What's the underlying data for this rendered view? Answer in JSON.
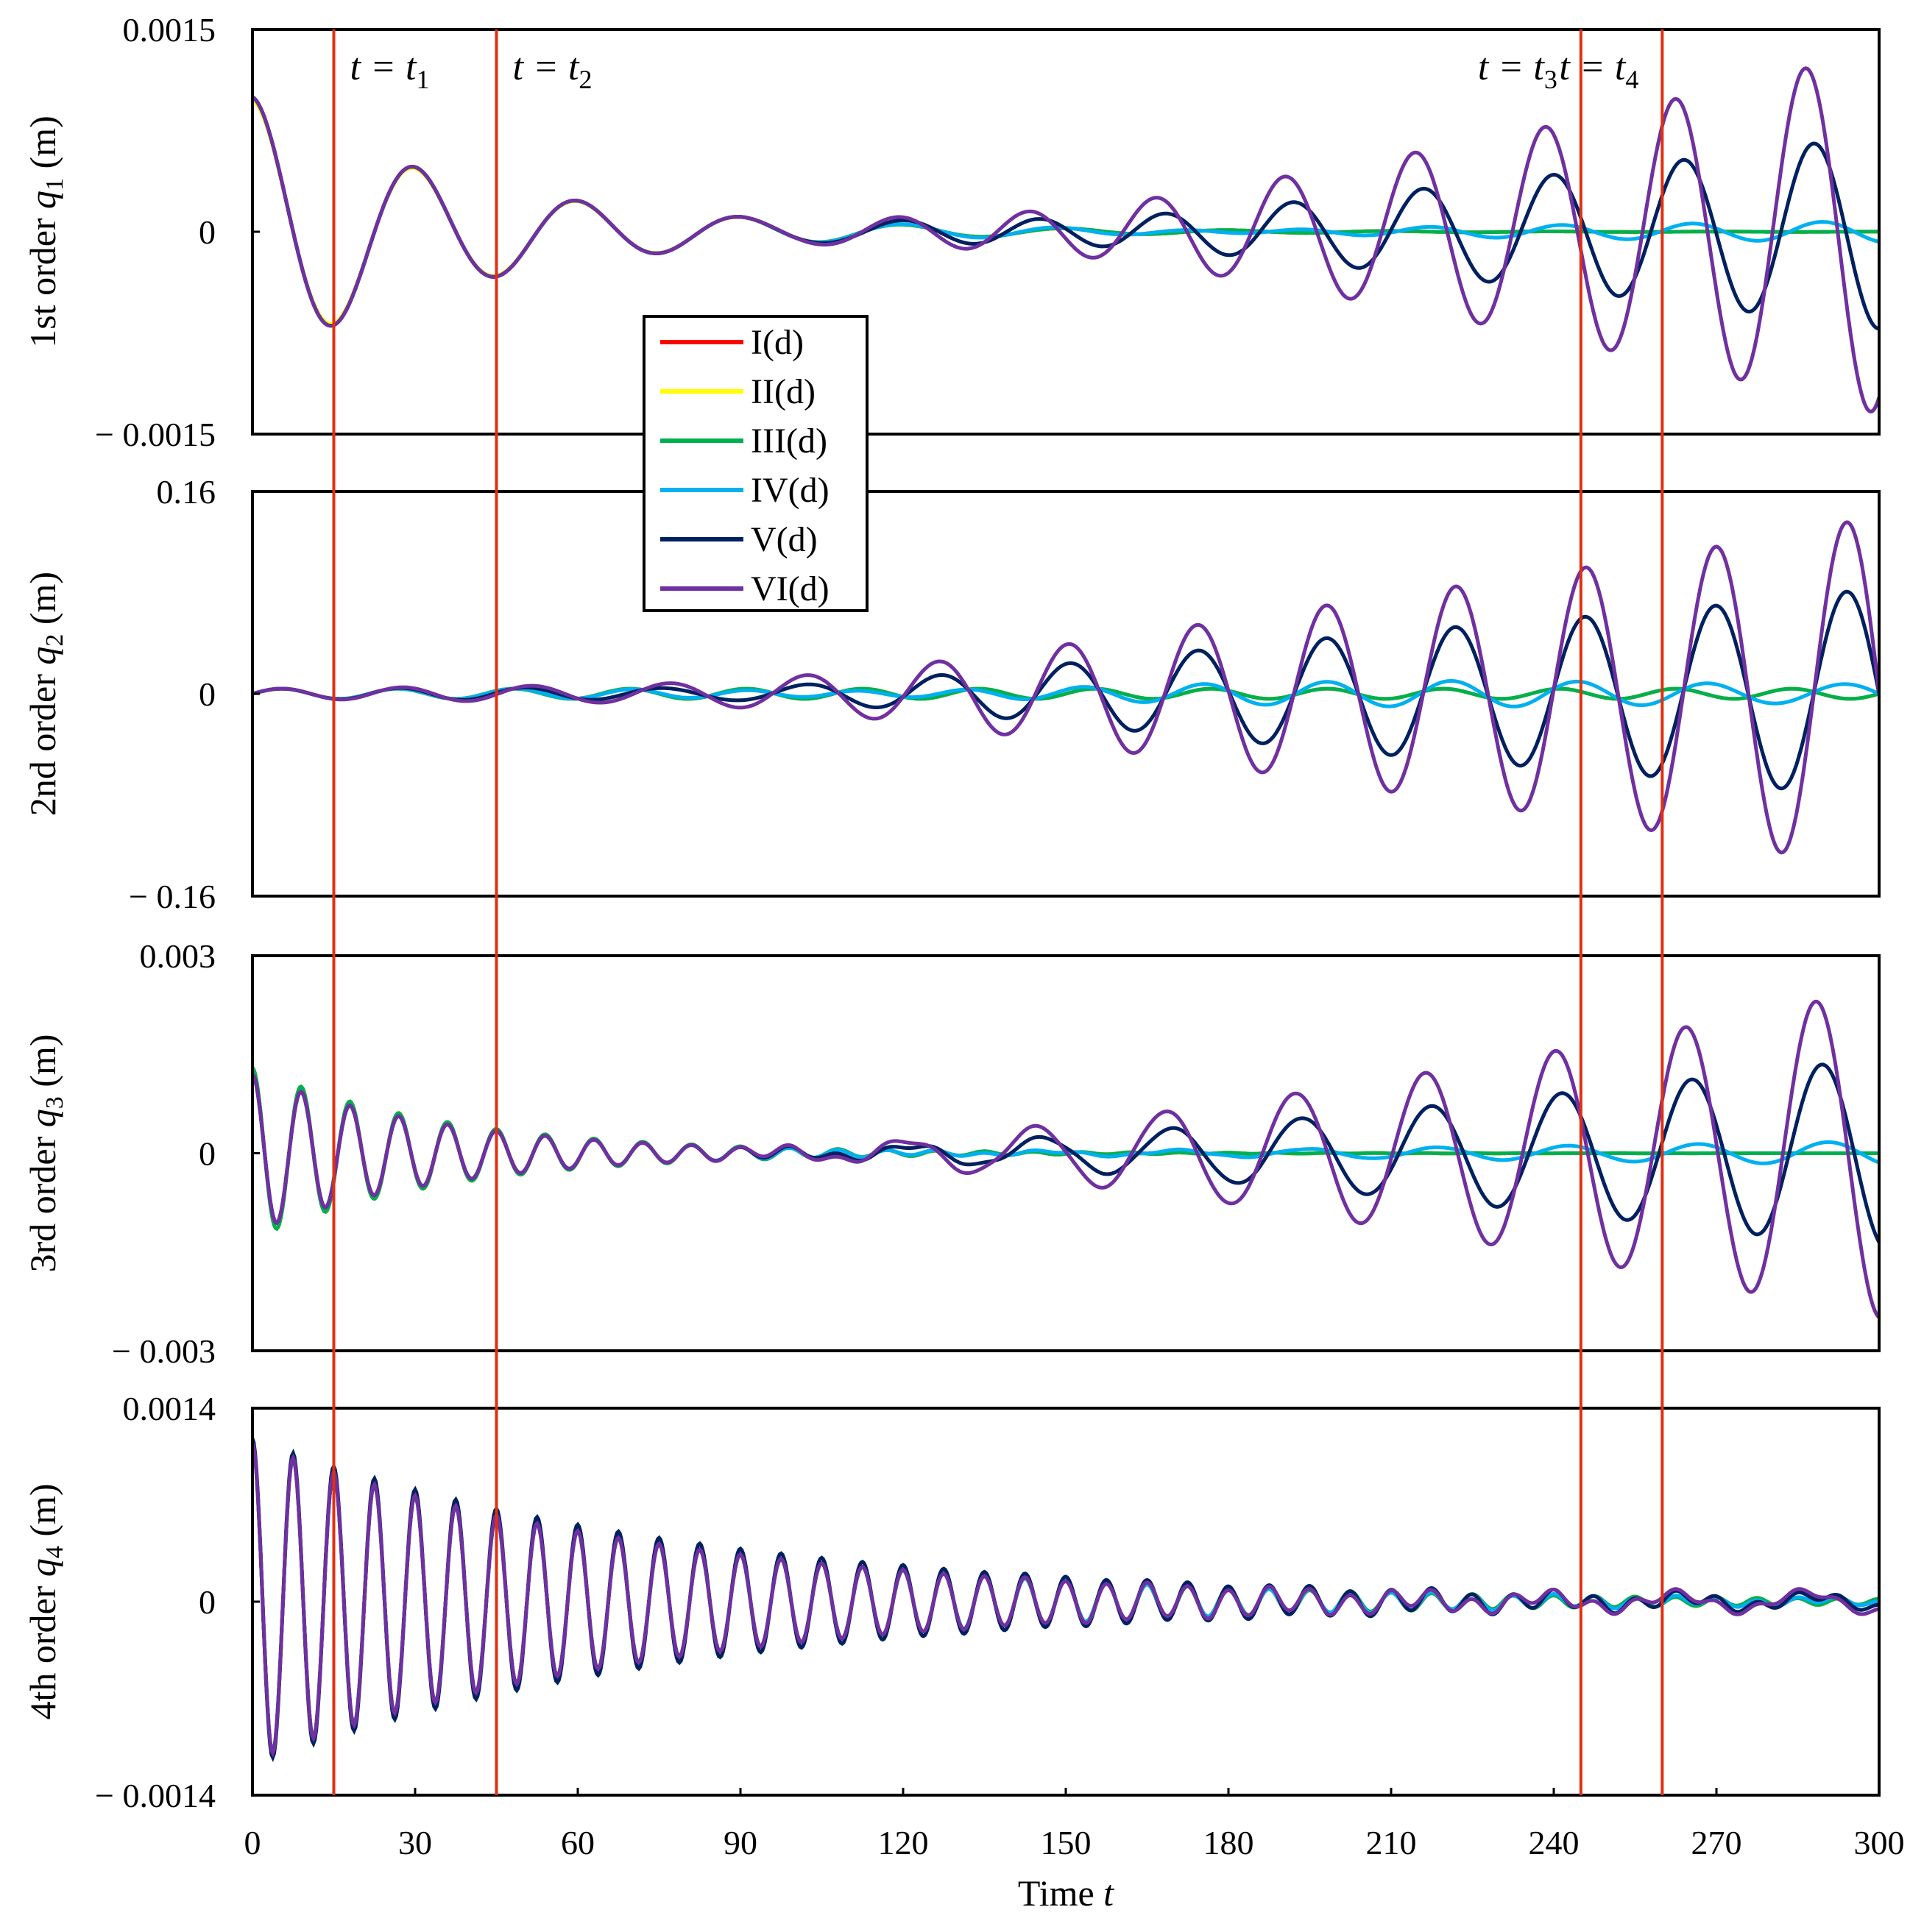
{
  "chart_data": {
    "type": "line",
    "xlabel": "Time",
    "xlabel_symbol": "t",
    "x_range": [
      0,
      300
    ],
    "x_ticks": [
      "0",
      "30",
      "60",
      "90",
      "120",
      "150",
      "180",
      "210",
      "240",
      "270",
      "300"
    ],
    "markers": [
      {
        "label": "t = t",
        "sub": "1",
        "t": 15
      },
      {
        "label": "t = t",
        "sub": "2",
        "t": 45
      },
      {
        "label": "t = t",
        "sub": "3",
        "t": 245
      },
      {
        "label": "t = t",
        "sub": "4",
        "t": 260
      }
    ],
    "legend": [
      {
        "name": "I(d)",
        "color": "#ff0000"
      },
      {
        "name": "II(d)",
        "color": "#ffff00"
      },
      {
        "name": "III(d)",
        "color": "#00b050"
      },
      {
        "name": "IV(d)",
        "color": "#00b0f0"
      },
      {
        "name": "V(d)",
        "color": "#002060"
      },
      {
        "name": "VI(d)",
        "color": "#7030a0"
      }
    ],
    "panels": [
      {
        "ylabel": "1st order q",
        "ylabel_sub": "1",
        "ylabel_unit": "(m)",
        "ylim": [
          -0.0015,
          0.0015
        ],
        "yticks": [
          "0.0015",
          "0",
          "− 0.0015"
        ],
        "omega": 0.2094,
        "model": "decay",
        "series": [
          {
            "name": "I(d)",
            "amp0": 0.001,
            "decay": 0.0245,
            "growth": 0,
            "gamp": 0
          },
          {
            "name": "II(d)",
            "amp0": 0.00098,
            "decay": 0.0245,
            "growth": 0,
            "gamp": 0
          },
          {
            "name": "III(d)",
            "amp0": 0.001,
            "decay": 0.0245,
            "growth": 0,
            "gamp": 0
          },
          {
            "name": "IV(d)",
            "amp0": 0.001,
            "decay": 0.0245,
            "growth": 0.0,
            "gamp": 8e-05
          },
          {
            "name": "V(d)",
            "amp0": 0.001,
            "decay": 0.0245,
            "growth": 0.0,
            "gamp": 0.00072
          },
          {
            "name": "VI(d)",
            "amp0": 0.001,
            "decay": 0.0245,
            "growth": 0.0,
            "gamp": 0.00135
          }
        ]
      },
      {
        "ylabel": "2nd order q",
        "ylabel_sub": "2",
        "ylabel_unit": "(m)",
        "ylim": [
          -0.16,
          0.16
        ],
        "yticks": [
          "0.16",
          "0",
          "− 0.16"
        ],
        "omega": 0.6981,
        "model": "growth",
        "series": [
          {
            "name": "I(d)",
            "amp0": 0.004,
            "decay": 0.02,
            "growth": 0,
            "gamp": 0
          },
          {
            "name": "II(d)",
            "amp0": 0.004,
            "decay": 0.02,
            "growth": 0,
            "gamp": 0
          },
          {
            "name": "III(d)",
            "amp0": 0.004,
            "decay": 0.02,
            "growth": 0,
            "gamp": 0
          },
          {
            "name": "IV(d)",
            "amp0": 0.004,
            "decay": 0.02,
            "growth": 0,
            "gamp": 0.012
          },
          {
            "name": "V(d)",
            "amp0": 0.004,
            "decay": 0.02,
            "growth": 0,
            "gamp": 0.088
          },
          {
            "name": "VI(d)",
            "amp0": 0.004,
            "decay": 0.02,
            "growth": 0,
            "gamp": 0.145
          }
        ]
      },
      {
        "ylabel": "3rd order q",
        "ylabel_sub": "3",
        "ylabel_unit": "(m)",
        "ylim": [
          -0.003,
          0.003
        ],
        "yticks": [
          "0.003",
          "0",
          "− 0.003"
        ],
        "omega": 0.6981,
        "model": "mixed",
        "series": [
          {
            "name": "I(d)",
            "amp0": 0.0013,
            "decay": 0.028,
            "growth": 0,
            "gamp": 0
          },
          {
            "name": "II(d)",
            "amp0": 0.0013,
            "decay": 0.028,
            "growth": 0,
            "gamp": 0
          },
          {
            "name": "III(d)",
            "amp0": 0.0013,
            "decay": 0.028,
            "growth": 0,
            "gamp": 0
          },
          {
            "name": "IV(d)",
            "amp0": 0.0012,
            "decay": 0.028,
            "growth": 0,
            "gamp": 0.00018
          },
          {
            "name": "V(d)",
            "amp0": 0.0012,
            "decay": 0.028,
            "growth": 0,
            "gamp": 0.00145
          },
          {
            "name": "VI(d)",
            "amp0": 0.0012,
            "decay": 0.028,
            "growth": 0,
            "gamp": 0.0025
          }
        ]
      },
      {
        "ylabel": "4th order q",
        "ylabel_sub": "4",
        "ylabel_unit": "(m)",
        "ylim": [
          -0.0014,
          0.0014
        ],
        "yticks": [
          "0.0014",
          "0",
          "− 0.0014"
        ],
        "omega": 0.8378,
        "model": "decay",
        "series": [
          {
            "name": "I(d)",
            "amp0": 0.00115,
            "decay": 0.0135,
            "growth": 0,
            "gamp": 0
          },
          {
            "name": "II(d)",
            "amp0": 0.00115,
            "decay": 0.0135,
            "growth": 0,
            "gamp": 0
          },
          {
            "name": "III(d)",
            "amp0": 0.00115,
            "decay": 0.0135,
            "growth": 0,
            "gamp": 0
          },
          {
            "name": "IV(d)",
            "amp0": 0.00115,
            "decay": 0.0135,
            "growth": 0,
            "gamp": 2e-05
          },
          {
            "name": "V(d)",
            "amp0": 0.00118,
            "decay": 0.0125,
            "growth": 0,
            "gamp": 5e-05
          },
          {
            "name": "VI(d)",
            "amp0": 0.00115,
            "decay": 0.0135,
            "growth": 0,
            "gamp": 8e-05
          }
        ]
      }
    ]
  }
}
